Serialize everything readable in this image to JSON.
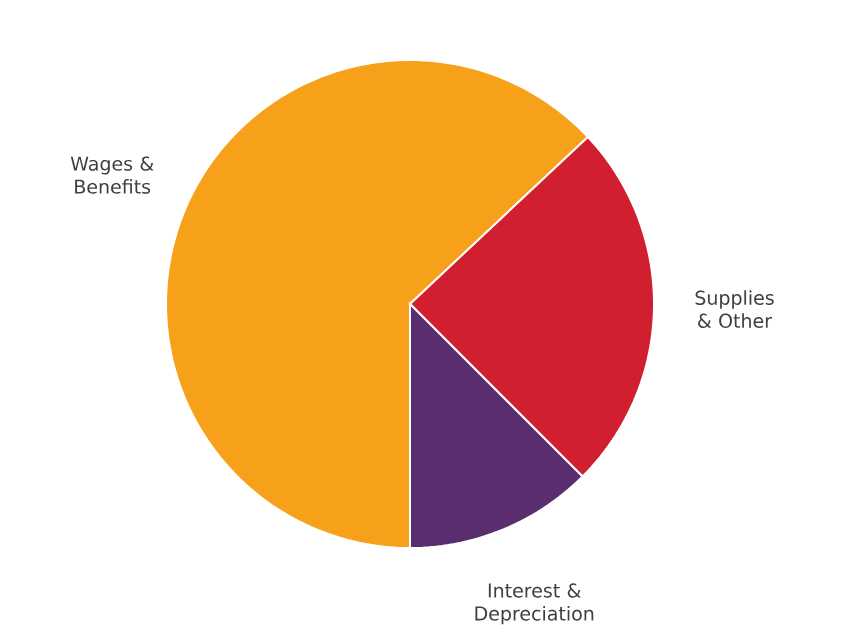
{
  "chart_data": {
    "type": "pie",
    "categories": [
      "Wages & Benefits",
      "Supplies & Other",
      "Interest & Depreciation"
    ],
    "values": [
      63,
      24.5,
      12.5
    ],
    "colors": [
      "#f7a11a",
      "#d11f2f",
      "#5a2d6e"
    ]
  }
}
